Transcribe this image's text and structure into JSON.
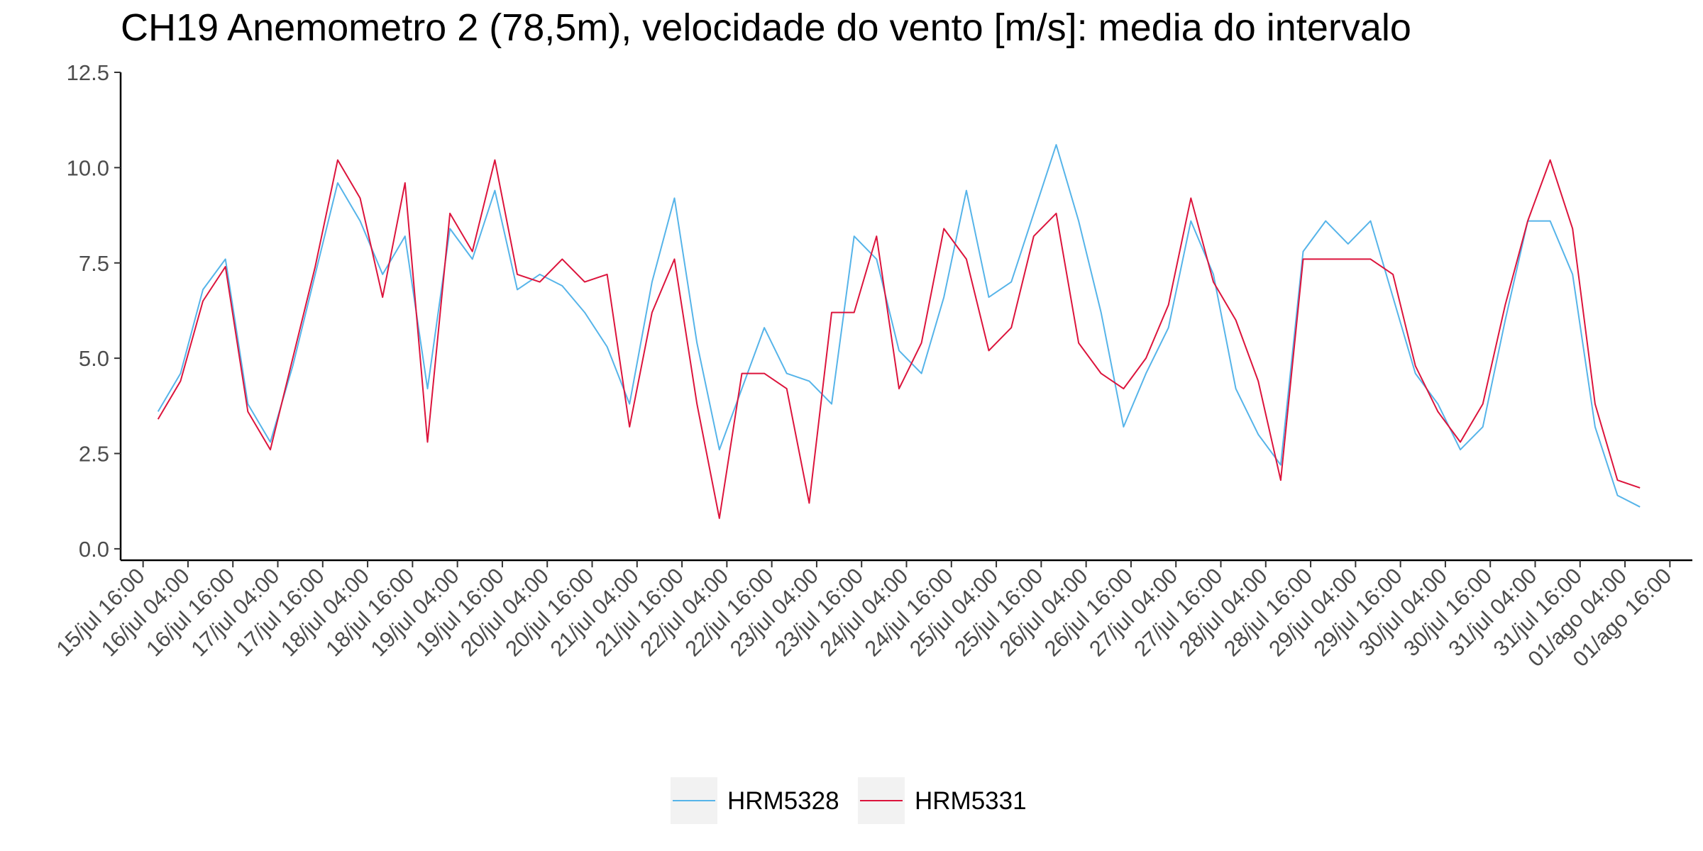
{
  "chart_data": {
    "type": "line",
    "title": "CH19 Anemometro 2 (78,5m), velocidade do vento [m/s]: media do intervalo",
    "xlabel": "",
    "ylabel": "",
    "ylim": [
      -0.3,
      12.5
    ],
    "xlim": [
      "2022-07-15T10:00",
      "2022-08-01T22:00"
    ],
    "y_ticks": [
      0.0,
      2.5,
      5.0,
      7.5,
      10.0,
      12.5
    ],
    "y_tick_labels": [
      "0.0",
      "2.5",
      "5.0",
      "7.5",
      "10.0",
      "12.5"
    ],
    "x_ticks": [
      {
        "t": "2022-07-15T16:00",
        "label": "15/jul 16:00"
      },
      {
        "t": "2022-07-16T04:00",
        "label": "16/jul 04:00"
      },
      {
        "t": "2022-07-16T16:00",
        "label": "16/jul 16:00"
      },
      {
        "t": "2022-07-17T04:00",
        "label": "17/jul 04:00"
      },
      {
        "t": "2022-07-17T16:00",
        "label": "17/jul 16:00"
      },
      {
        "t": "2022-07-18T04:00",
        "label": "18/jul 04:00"
      },
      {
        "t": "2022-07-18T16:00",
        "label": "18/jul 16:00"
      },
      {
        "t": "2022-07-19T04:00",
        "label": "19/jul 04:00"
      },
      {
        "t": "2022-07-19T16:00",
        "label": "19/jul 16:00"
      },
      {
        "t": "2022-07-20T04:00",
        "label": "20/jul 04:00"
      },
      {
        "t": "2022-07-20T16:00",
        "label": "20/jul 16:00"
      },
      {
        "t": "2022-07-21T04:00",
        "label": "21/jul 04:00"
      },
      {
        "t": "2022-07-21T16:00",
        "label": "21/jul 16:00"
      },
      {
        "t": "2022-07-22T04:00",
        "label": "22/jul 04:00"
      },
      {
        "t": "2022-07-22T16:00",
        "label": "22/jul 16:00"
      },
      {
        "t": "2022-07-23T04:00",
        "label": "23/jul 04:00"
      },
      {
        "t": "2022-07-23T16:00",
        "label": "23/jul 16:00"
      },
      {
        "t": "2022-07-24T04:00",
        "label": "24/jul 04:00"
      },
      {
        "t": "2022-07-24T16:00",
        "label": "24/jul 16:00"
      },
      {
        "t": "2022-07-25T04:00",
        "label": "25/jul 04:00"
      },
      {
        "t": "2022-07-25T16:00",
        "label": "25/jul 16:00"
      },
      {
        "t": "2022-07-26T04:00",
        "label": "26/jul 04:00"
      },
      {
        "t": "2022-07-26T16:00",
        "label": "26/jul 16:00"
      },
      {
        "t": "2022-07-27T04:00",
        "label": "27/jul 04:00"
      },
      {
        "t": "2022-07-27T16:00",
        "label": "27/jul 16:00"
      },
      {
        "t": "2022-07-28T04:00",
        "label": "28/jul 04:00"
      },
      {
        "t": "2022-07-28T16:00",
        "label": "28/jul 16:00"
      },
      {
        "t": "2022-07-29T04:00",
        "label": "29/jul 04:00"
      },
      {
        "t": "2022-07-29T16:00",
        "label": "29/jul 16:00"
      },
      {
        "t": "2022-07-30T04:00",
        "label": "30/jul 04:00"
      },
      {
        "t": "2022-07-30T16:00",
        "label": "30/jul 16:00"
      },
      {
        "t": "2022-07-31T04:00",
        "label": "31/jul 04:00"
      },
      {
        "t": "2022-07-31T16:00",
        "label": "31/jul 16:00"
      },
      {
        "t": "2022-08-01T04:00",
        "label": "01/ago 04:00"
      },
      {
        "t": "2022-08-01T16:00",
        "label": "01/ago 16:00"
      }
    ],
    "grid": false,
    "legend_position": "bottom",
    "series": [
      {
        "name": "HRM5328",
        "color": "#56b4e9",
        "x": [
          "2022-07-15T20:00",
          "2022-07-16T02:00",
          "2022-07-16T08:00",
          "2022-07-16T14:00",
          "2022-07-16T20:00",
          "2022-07-17T02:00",
          "2022-07-17T08:00",
          "2022-07-17T14:00",
          "2022-07-17T20:00",
          "2022-07-18T02:00",
          "2022-07-18T08:00",
          "2022-07-18T14:00",
          "2022-07-18T20:00",
          "2022-07-19T02:00",
          "2022-07-19T08:00",
          "2022-07-19T14:00",
          "2022-07-19T20:00",
          "2022-07-20T02:00",
          "2022-07-20T08:00",
          "2022-07-20T14:00",
          "2022-07-20T20:00",
          "2022-07-21T02:00",
          "2022-07-21T08:00",
          "2022-07-21T14:00",
          "2022-07-21T20:00",
          "2022-07-22T02:00",
          "2022-07-22T08:00",
          "2022-07-22T14:00",
          "2022-07-22T20:00",
          "2022-07-23T02:00",
          "2022-07-23T08:00",
          "2022-07-23T14:00",
          "2022-07-23T20:00",
          "2022-07-24T02:00",
          "2022-07-24T08:00",
          "2022-07-24T14:00",
          "2022-07-24T20:00",
          "2022-07-25T02:00",
          "2022-07-25T08:00",
          "2022-07-25T14:00",
          "2022-07-25T20:00",
          "2022-07-26T02:00",
          "2022-07-26T08:00",
          "2022-07-26T14:00",
          "2022-07-26T20:00",
          "2022-07-27T02:00",
          "2022-07-27T08:00",
          "2022-07-27T14:00",
          "2022-07-27T20:00",
          "2022-07-28T02:00",
          "2022-07-28T08:00",
          "2022-07-28T14:00",
          "2022-07-28T20:00",
          "2022-07-29T02:00",
          "2022-07-29T08:00",
          "2022-07-29T14:00",
          "2022-07-29T20:00",
          "2022-07-30T02:00",
          "2022-07-30T08:00",
          "2022-07-30T14:00",
          "2022-07-30T20:00",
          "2022-07-31T02:00",
          "2022-07-31T08:00",
          "2022-07-31T14:00",
          "2022-07-31T20:00",
          "2022-08-01T02:00",
          "2022-08-01T08:00"
        ],
        "values": [
          3.6,
          4.6,
          6.8,
          7.6,
          3.8,
          2.8,
          4.8,
          7.2,
          9.6,
          8.6,
          7.2,
          8.2,
          4.2,
          8.4,
          7.6,
          9.4,
          6.8,
          7.2,
          6.9,
          6.2,
          5.3,
          3.8,
          7.0,
          9.2,
          5.4,
          2.6,
          4.2,
          5.8,
          4.6,
          4.4,
          3.8,
          8.2,
          7.6,
          5.2,
          4.6,
          6.6,
          9.4,
          6.6,
          7.0,
          8.8,
          10.6,
          8.6,
          6.2,
          3.2,
          4.6,
          5.8,
          8.6,
          7.2,
          4.2,
          3.0,
          2.2,
          7.8,
          8.6,
          8.0,
          8.6,
          6.6,
          4.6,
          3.8,
          2.6,
          3.2,
          6.0,
          8.6,
          8.6,
          7.2,
          3.2,
          1.4,
          1.1
        ]
      },
      {
        "name": "HRM5331",
        "color": "#dc143c",
        "x": [
          "2022-07-15T20:00",
          "2022-07-16T02:00",
          "2022-07-16T08:00",
          "2022-07-16T14:00",
          "2022-07-16T20:00",
          "2022-07-17T02:00",
          "2022-07-17T08:00",
          "2022-07-17T14:00",
          "2022-07-17T20:00",
          "2022-07-18T02:00",
          "2022-07-18T08:00",
          "2022-07-18T14:00",
          "2022-07-18T20:00",
          "2022-07-19T02:00",
          "2022-07-19T08:00",
          "2022-07-19T14:00",
          "2022-07-19T20:00",
          "2022-07-20T02:00",
          "2022-07-20T08:00",
          "2022-07-20T14:00",
          "2022-07-20T20:00",
          "2022-07-21T02:00",
          "2022-07-21T08:00",
          "2022-07-21T14:00",
          "2022-07-21T20:00",
          "2022-07-22T02:00",
          "2022-07-22T08:00",
          "2022-07-22T14:00",
          "2022-07-22T20:00",
          "2022-07-23T02:00",
          "2022-07-23T08:00",
          "2022-07-23T14:00",
          "2022-07-23T20:00",
          "2022-07-24T02:00",
          "2022-07-24T08:00",
          "2022-07-24T14:00",
          "2022-07-24T20:00",
          "2022-07-25T02:00",
          "2022-07-25T08:00",
          "2022-07-25T14:00",
          "2022-07-25T20:00",
          "2022-07-26T02:00",
          "2022-07-26T08:00",
          "2022-07-26T14:00",
          "2022-07-26T20:00",
          "2022-07-27T02:00",
          "2022-07-27T08:00",
          "2022-07-27T14:00",
          "2022-07-27T20:00",
          "2022-07-28T02:00",
          "2022-07-28T08:00",
          "2022-07-28T14:00",
          "2022-07-28T20:00",
          "2022-07-29T02:00",
          "2022-07-29T08:00",
          "2022-07-29T14:00",
          "2022-07-29T20:00",
          "2022-07-30T02:00",
          "2022-07-30T08:00",
          "2022-07-30T14:00",
          "2022-07-30T20:00",
          "2022-07-31T02:00",
          "2022-07-31T08:00",
          "2022-07-31T14:00",
          "2022-07-31T20:00",
          "2022-08-01T02:00",
          "2022-08-01T08:00"
        ],
        "values": [
          3.4,
          4.4,
          6.5,
          7.4,
          3.6,
          2.6,
          5.0,
          7.4,
          10.2,
          9.2,
          6.6,
          9.6,
          2.8,
          8.8,
          7.8,
          10.2,
          7.2,
          7.0,
          7.6,
          7.0,
          7.2,
          3.2,
          6.2,
          7.6,
          3.8,
          0.8,
          4.6,
          4.6,
          4.2,
          1.2,
          6.2,
          6.2,
          8.2,
          4.2,
          5.4,
          8.4,
          7.6,
          5.2,
          5.8,
          8.2,
          8.8,
          5.4,
          4.6,
          4.2,
          5.0,
          6.4,
          9.2,
          7.0,
          6.0,
          4.4,
          1.8,
          7.6,
          7.6,
          7.6,
          7.6,
          7.2,
          4.8,
          3.6,
          2.8,
          3.8,
          6.4,
          8.6,
          10.2,
          8.4,
          3.8,
          1.8,
          1.6
        ]
      }
    ]
  }
}
